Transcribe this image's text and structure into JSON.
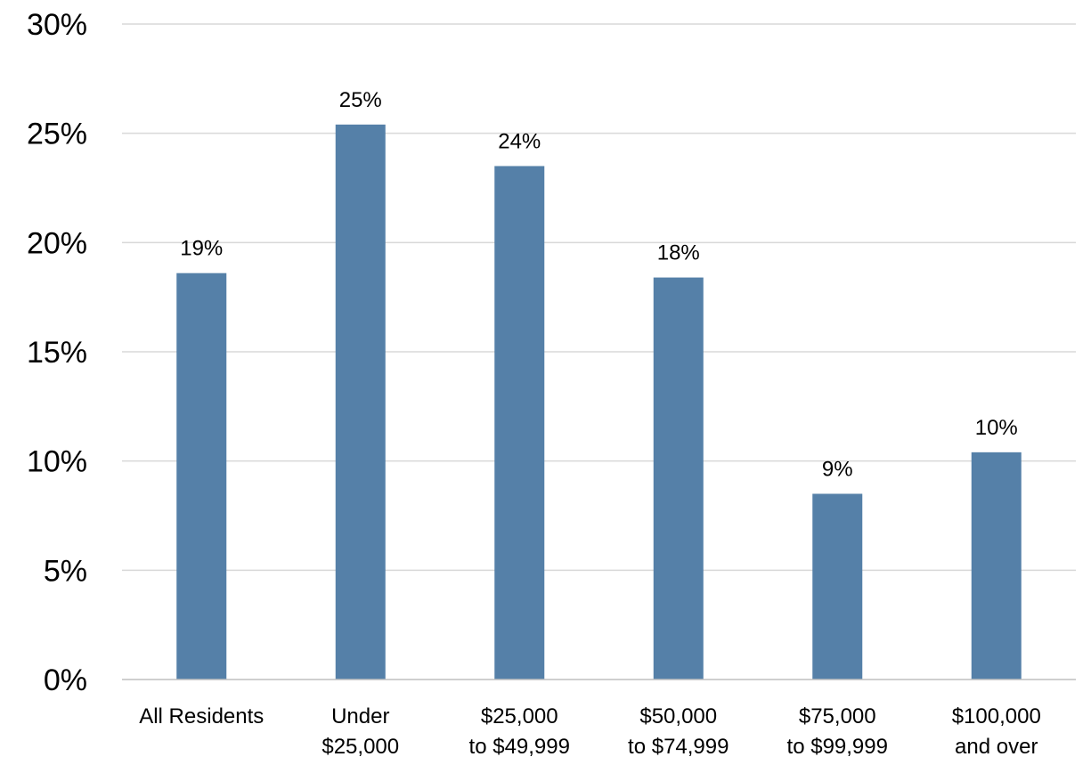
{
  "chart_data": {
    "type": "bar",
    "title": "",
    "xlabel": "",
    "ylabel": "",
    "categories": [
      [
        "All Residents"
      ],
      [
        "Under",
        "$25,000"
      ],
      [
        "$25,000",
        "to $49,999"
      ],
      [
        "$50,000",
        "to $74,999"
      ],
      [
        "$75,000",
        "to $99,999"
      ],
      [
        "$100,000",
        "and over"
      ]
    ],
    "values": [
      18.6,
      25.4,
      23.5,
      18.4,
      8.5,
      10.4
    ],
    "data_labels": [
      "19%",
      "25%",
      "24%",
      "18%",
      "9%",
      "10%"
    ],
    "ylim": [
      0,
      30
    ],
    "yticks": [
      0,
      5,
      10,
      15,
      20,
      25,
      30
    ],
    "ytick_labels": [
      "0%",
      "5%",
      "10%",
      "15%",
      "20%",
      "25%",
      "30%"
    ],
    "grid": true,
    "legend": "none",
    "bar_color": "#5580a8"
  }
}
